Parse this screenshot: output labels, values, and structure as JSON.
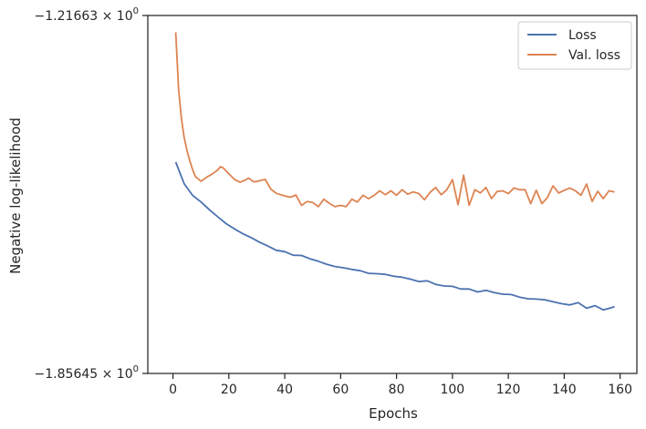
{
  "chart_data": {
    "type": "line",
    "xlabel": "Epochs",
    "ylabel": "Negative log-likelihood",
    "xlim": [
      -9,
      166
    ],
    "ylim": [
      -1.85645,
      -1.21663
    ],
    "y_scale": "symlog",
    "x_ticks": [
      0,
      20,
      40,
      60,
      80,
      100,
      120,
      140,
      160
    ],
    "y_ticks": [
      {
        "value": -1.21663,
        "mantissa": "−1.21663",
        "base": "10",
        "exponent": "0"
      },
      {
        "value": -1.85645,
        "mantissa": "−1.85645",
        "base": "10",
        "exponent": "0"
      }
    ],
    "grid": false,
    "legend_position": "top-right",
    "series": [
      {
        "name": "Loss",
        "color": "#4c72b0",
        "x": [
          1,
          4,
          7,
          10,
          13,
          16,
          19,
          22,
          25,
          28,
          31,
          34,
          37,
          40,
          43,
          46,
          49,
          52,
          55,
          58,
          61,
          64,
          67,
          70,
          73,
          76,
          79,
          82,
          85,
          88,
          91,
          94,
          97,
          100,
          103,
          106,
          109,
          112,
          115,
          118,
          121,
          124,
          127,
          130,
          133,
          136,
          139,
          142,
          145,
          148,
          151,
          154,
          157,
          158
        ],
        "y": [
          -1.4787,
          -1.5171,
          -1.538,
          -1.5499,
          -1.5637,
          -1.5765,
          -1.5887,
          -1.598,
          -1.6067,
          -1.6137,
          -1.6218,
          -1.6288,
          -1.6364,
          -1.6388,
          -1.6451,
          -1.6456,
          -1.6515,
          -1.6559,
          -1.6612,
          -1.6653,
          -1.6676,
          -1.6705,
          -1.6728,
          -1.6775,
          -1.6781,
          -1.6793,
          -1.6828,
          -1.6845,
          -1.688,
          -1.6921,
          -1.6909,
          -1.6973,
          -1.7002,
          -1.7008,
          -1.7055,
          -1.7055,
          -1.7107,
          -1.7078,
          -1.7119,
          -1.7148,
          -1.7154,
          -1.7201,
          -1.723,
          -1.7236,
          -1.7248,
          -1.7283,
          -1.7318,
          -1.7341,
          -1.73,
          -1.7399,
          -1.7353,
          -1.7428,
          -1.7387,
          -1.737
        ]
      },
      {
        "name": "Val. loss",
        "color": "#dd8452",
        "x": [
          1,
          2,
          3,
          4,
          5,
          6,
          7,
          8,
          10,
          12,
          14,
          16,
          17,
          18,
          20,
          22,
          24,
          26,
          27,
          29,
          31,
          33,
          35,
          37,
          40,
          42,
          44,
          46,
          48,
          50,
          52,
          54,
          56,
          58,
          60,
          62,
          64,
          66,
          68,
          70,
          72,
          74,
          76,
          78,
          80,
          82,
          84,
          86,
          88,
          90,
          92,
          94,
          96,
          98,
          100,
          102,
          104,
          106,
          108,
          110,
          112,
          114,
          116,
          118,
          120,
          122,
          124,
          126,
          128,
          130,
          132,
          134,
          136,
          138,
          140,
          142,
          144,
          146,
          148,
          150,
          152,
          154,
          156,
          158
        ],
        "y": [
          -1.2466,
          -1.3478,
          -1.4002,
          -1.4345,
          -1.4578,
          -1.4758,
          -1.4915,
          -1.5044,
          -1.513,
          -1.506,
          -1.5002,
          -1.4927,
          -1.4869,
          -1.4892,
          -1.4996,
          -1.5095,
          -1.5148,
          -1.5107,
          -1.5072,
          -1.5142,
          -1.5119,
          -1.5096,
          -1.527,
          -1.5346,
          -1.5392,
          -1.5415,
          -1.5375,
          -1.5561,
          -1.5491,
          -1.5509,
          -1.5584,
          -1.545,
          -1.5526,
          -1.5583,
          -1.5561,
          -1.5584,
          -1.545,
          -1.55,
          -1.538,
          -1.544,
          -1.538,
          -1.53,
          -1.537,
          -1.53,
          -1.538,
          -1.528,
          -1.536,
          -1.532,
          -1.535,
          -1.546,
          -1.533,
          -1.524,
          -1.537,
          -1.528,
          -1.51,
          -1.555,
          -1.502,
          -1.556,
          -1.528,
          -1.534,
          -1.524,
          -1.544,
          -1.531,
          -1.53,
          -1.535,
          -1.525,
          -1.528,
          -1.528,
          -1.553,
          -1.529,
          -1.553,
          -1.542,
          -1.521,
          -1.534,
          -1.529,
          -1.525,
          -1.53,
          -1.538,
          -1.518,
          -1.549,
          -1.531,
          -1.544,
          -1.53,
          -1.532
        ]
      }
    ]
  }
}
